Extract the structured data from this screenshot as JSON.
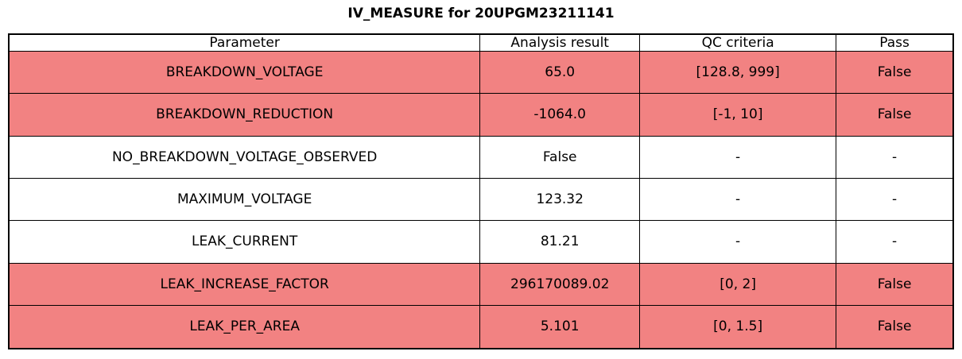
{
  "title": "IV_MEASURE for 20UPGM23211141",
  "colors": {
    "fail_row_bg": "#f28282",
    "ok_row_bg": "#ffffff",
    "border": "#000000"
  },
  "table": {
    "columns": {
      "parameter": "Parameter",
      "result": "Analysis result",
      "criteria": "QC criteria",
      "pass": "Pass"
    },
    "rows": [
      {
        "parameter": "BREAKDOWN_VOLTAGE",
        "result": "65.0",
        "criteria": "[128.8, 999]",
        "pass": "False",
        "status": "fail"
      },
      {
        "parameter": "BREAKDOWN_REDUCTION",
        "result": "-1064.0",
        "criteria": "[-1, 10]",
        "pass": "False",
        "status": "fail"
      },
      {
        "parameter": "NO_BREAKDOWN_VOLTAGE_OBSERVED",
        "result": "False",
        "criteria": "-",
        "pass": "-",
        "status": "none"
      },
      {
        "parameter": "MAXIMUM_VOLTAGE",
        "result": "123.32",
        "criteria": "-",
        "pass": "-",
        "status": "none"
      },
      {
        "parameter": "LEAK_CURRENT",
        "result": "81.21",
        "criteria": "-",
        "pass": "-",
        "status": "none"
      },
      {
        "parameter": "LEAK_INCREASE_FACTOR",
        "result": "296170089.02",
        "criteria": "[0, 2]",
        "pass": "False",
        "status": "fail"
      },
      {
        "parameter": "LEAK_PER_AREA",
        "result": "5.101",
        "criteria": "[0, 1.5]",
        "pass": "False",
        "status": "fail"
      }
    ]
  }
}
